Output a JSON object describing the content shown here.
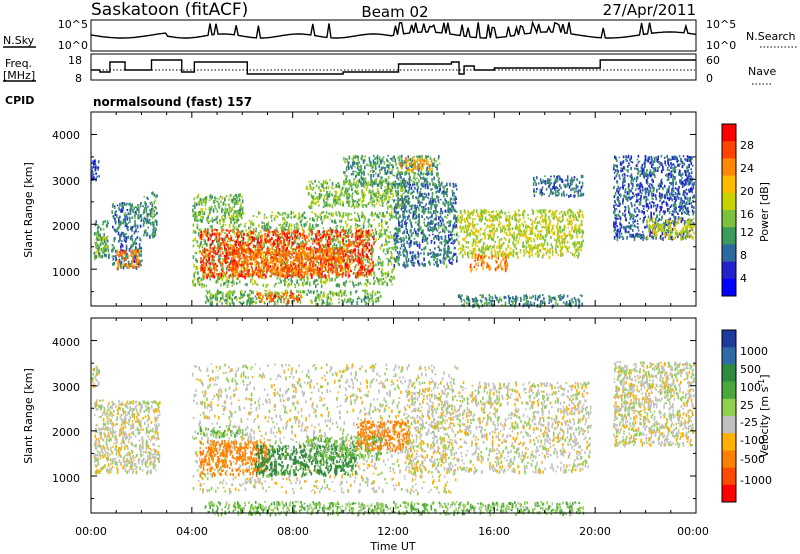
{
  "header": {
    "station": "Saskatoon (fitACF)",
    "beam": "Beam 02",
    "date": "27/Apr/2011"
  },
  "nsky_panel": {
    "left_label": "N.Sky",
    "right_label": "N.Search",
    "left_ticks": [
      "10^5",
      "10^0"
    ],
    "right_ticks": [
      "10^5",
      "10^0"
    ]
  },
  "freq_panel": {
    "left_label_line1": "Freq.",
    "left_label_line2": "[MHz]",
    "right_label": "Nave",
    "left_ticks": [
      "18",
      "8"
    ],
    "right_ticks": [
      "60",
      "0"
    ],
    "freq_steps": [
      {
        "t": 0.0,
        "f": 12
      },
      {
        "t": 0.35,
        "f": 11
      },
      {
        "t": 0.75,
        "f": 16
      },
      {
        "t": 1.35,
        "f": 12
      },
      {
        "t": 2.1,
        "f": 12
      },
      {
        "t": 2.4,
        "f": 17
      },
      {
        "t": 3.6,
        "f": 11
      },
      {
        "t": 4.1,
        "f": 16
      },
      {
        "t": 6.2,
        "f": 10
      },
      {
        "t": 10.0,
        "f": 11
      },
      {
        "t": 12.2,
        "f": 15
      },
      {
        "t": 14.3,
        "f": 16
      },
      {
        "t": 14.6,
        "f": 10
      },
      {
        "t": 14.8,
        "f": 14
      },
      {
        "t": 15.2,
        "f": 12
      },
      {
        "t": 16.0,
        "f": 13
      },
      {
        "t": 19.2,
        "f": 13
      },
      {
        "t": 20.2,
        "f": 17
      },
      {
        "t": 24.0,
        "f": 17
      }
    ]
  },
  "cpid": {
    "label": "CPID",
    "value": "normalsound (fast) 157"
  },
  "power_panel": {
    "ylabel": "Slant Range [km]",
    "yticks": [
      "1000",
      "2000",
      "3000",
      "4000"
    ],
    "colorbar_label": "Power [dB]",
    "colorbar_ticks": [
      "28",
      "24",
      "20",
      "16",
      "12",
      "8",
      "4"
    ],
    "colorbar_colors": [
      "#ff0000",
      "#ff4400",
      "#ff8800",
      "#ffbb00",
      "#c8d200",
      "#7cc23c",
      "#3c9a5a",
      "#2e6aa0",
      "#2222cc",
      "#0000ff"
    ]
  },
  "velocity_panel": {
    "ylabel": "Slant Range [km]",
    "yticks": [
      "1000",
      "2000",
      "3000",
      "4000"
    ],
    "colorbar_label": "Velocity [m s",
    "colorbar_label_sup": "-1",
    "colorbar_label_end": "]",
    "colorbar_ticks": [
      "1000",
      "500",
      "100",
      "25",
      "-25",
      "-100",
      "-500",
      "-1000"
    ],
    "colorbar_colors": [
      "#1e3a9a",
      "#2f6aa8",
      "#2e8a3c",
      "#4aa83a",
      "#8fd14f",
      "#c0c0c0",
      "#ffb000",
      "#ff8000",
      "#ff4a00",
      "#ff0000"
    ]
  },
  "x_axis": {
    "ticks": [
      "00:00",
      "04:00",
      "08:00",
      "12:00",
      "16:00",
      "20:00",
      "00:00"
    ],
    "label": "Time UT"
  },
  "chart_data": [
    {
      "type": "heatmap",
      "title": "Saskatoon (fitACF) Beam 02 27/Apr/2011",
      "quantity": "Power",
      "xlabel": "Time UT",
      "ylabel": "Slant Range [km]",
      "xlim_hours": [
        0,
        24
      ],
      "ylim_km": [
        180,
        4500
      ],
      "color_scale_db": [
        0,
        30
      ],
      "regions": [
        {
          "t0": 0.0,
          "t1": 0.3,
          "r0": 3000,
          "r1": 3450,
          "value": 4
        },
        {
          "t0": 0.1,
          "t1": 0.7,
          "r0": 1250,
          "r1": 2100,
          "value": 10
        },
        {
          "t0": 0.15,
          "t1": 0.6,
          "r0": 1350,
          "r1": 1800,
          "value": 14
        },
        {
          "t0": 0.8,
          "t1": 2.0,
          "r0": 1050,
          "r1": 2500,
          "value": 8
        },
        {
          "t0": 1.0,
          "t1": 1.9,
          "r0": 1050,
          "r1": 1450,
          "value": 24
        },
        {
          "t0": 2.0,
          "t1": 2.6,
          "r0": 1750,
          "r1": 2750,
          "value": 9
        },
        {
          "t0": 4.0,
          "t1": 6.0,
          "r0": 2100,
          "r1": 2700,
          "value": 12
        },
        {
          "t0": 4.0,
          "t1": 12.0,
          "r0": 650,
          "r1": 2300,
          "value": 13
        },
        {
          "t0": 4.3,
          "t1": 11.2,
          "r0": 850,
          "r1": 1900,
          "value": 27
        },
        {
          "t0": 5.5,
          "t1": 10.0,
          "r0": 900,
          "r1": 1500,
          "value": 24
        },
        {
          "t0": 4.5,
          "t1": 11.5,
          "r0": 250,
          "r1": 550,
          "value": 12
        },
        {
          "t0": 6.5,
          "t1": 8.5,
          "r0": 300,
          "r1": 500,
          "value": 25
        },
        {
          "t0": 8.5,
          "t1": 12.5,
          "r0": 2400,
          "r1": 3000,
          "value": 13
        },
        {
          "t0": 10.0,
          "t1": 13.8,
          "r0": 2900,
          "r1": 3550,
          "value": 10
        },
        {
          "t0": 12.2,
          "t1": 13.5,
          "r0": 3200,
          "r1": 3500,
          "value": 22
        },
        {
          "t0": 12.0,
          "t1": 14.5,
          "r0": 1100,
          "r1": 2950,
          "value": 8
        },
        {
          "t0": 14.5,
          "t1": 19.5,
          "r0": 1300,
          "r1": 2350,
          "value": 16
        },
        {
          "t0": 15.0,
          "t1": 16.5,
          "r0": 1000,
          "r1": 1350,
          "value": 24
        },
        {
          "t0": 14.5,
          "t1": 19.5,
          "r0": 200,
          "r1": 450,
          "value": 9
        },
        {
          "t0": 17.5,
          "t1": 19.5,
          "r0": 2650,
          "r1": 3100,
          "value": 7
        },
        {
          "t0": 20.7,
          "t1": 23.9,
          "r0": 1700,
          "r1": 3550,
          "value": 6
        },
        {
          "t0": 22.0,
          "t1": 23.9,
          "r0": 1700,
          "r1": 2150,
          "value": 17
        }
      ]
    },
    {
      "type": "heatmap",
      "title": "Saskatoon (fitACF) Beam 02 27/Apr/2011",
      "quantity": "Velocity",
      "xlabel": "Time UT",
      "ylabel": "Slant Range [km]",
      "xlim_hours": [
        0,
        24
      ],
      "ylim_km": [
        180,
        4500
      ],
      "color_scale_ms": [
        -1000,
        1000
      ],
      "regions": [
        {
          "t0": 0.1,
          "t1": 2.7,
          "r0": 1100,
          "r1": 2700,
          "value": 0
        },
        {
          "t0": 0.0,
          "t1": 0.3,
          "r0": 3000,
          "r1": 3450,
          "value": 0
        },
        {
          "t0": 4.0,
          "t1": 14.5,
          "r0": 650,
          "r1": 3500,
          "value": 0
        },
        {
          "t0": 4.3,
          "t1": 7.0,
          "r0": 1050,
          "r1": 1800,
          "value": -160
        },
        {
          "t0": 6.5,
          "t1": 10.5,
          "r0": 1050,
          "r1": 1700,
          "value": 180
        },
        {
          "t0": 8.5,
          "t1": 11.5,
          "r0": 1400,
          "r1": 1900,
          "value": 60
        },
        {
          "t0": 10.5,
          "t1": 12.6,
          "r0": 1600,
          "r1": 2250,
          "value": -150
        },
        {
          "t0": 4.2,
          "t1": 6.0,
          "r0": 1900,
          "r1": 2100,
          "value": 60
        },
        {
          "t0": 4.5,
          "t1": 19.5,
          "r0": 180,
          "r1": 450,
          "value": 60
        },
        {
          "t0": 12.5,
          "t1": 19.8,
          "r0": 1100,
          "r1": 3100,
          "value": 0
        },
        {
          "t0": 20.7,
          "t1": 23.9,
          "r0": 1700,
          "r1": 3550,
          "value": 0
        }
      ]
    }
  ]
}
